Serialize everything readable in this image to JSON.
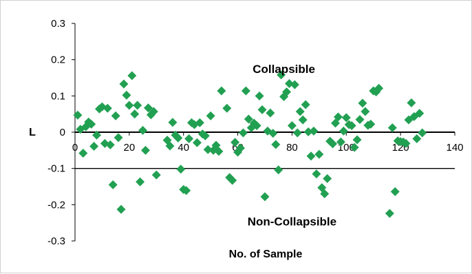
{
  "chart_data": {
    "type": "scatter",
    "xlabel": "No. of Sample",
    "ylabel": "L",
    "xlim": [
      0,
      140
    ],
    "ylim": [
      -0.3,
      0.3
    ],
    "x_ticks": [
      0,
      20,
      40,
      60,
      80,
      100,
      120,
      140
    ],
    "y_ticks": [
      -0.3,
      -0.2,
      -0.1,
      0,
      0.1,
      0.2,
      0.3
    ],
    "x_tick_labels": [
      "0",
      "20",
      "40",
      "60",
      "80",
      "100",
      "120",
      "140"
    ],
    "y_tick_labels": [
      "-0.3",
      "-0.2",
      "-0.1",
      "0",
      "0.1",
      "0.2",
      "0.3"
    ],
    "grid": false,
    "reference_lines": [
      {
        "axis": "y",
        "value": -0.1,
        "color": "#000000"
      }
    ],
    "annotations": [
      {
        "text": "Collapsible",
        "x": 77,
        "y": 0.163
      },
      {
        "text": "Non-Collapsible",
        "x": 80,
        "y": -0.257
      }
    ],
    "marker": {
      "shape": "diamond",
      "color": "#22a052"
    },
    "series": [
      {
        "points": [
          [
            1,
            0.047
          ],
          [
            2,
            0.008
          ],
          [
            3,
            -0.058
          ],
          [
            4,
            0.015
          ],
          [
            5,
            0.028
          ],
          [
            6,
            0.022
          ],
          [
            7,
            -0.039
          ],
          [
            8,
            -0.008
          ],
          [
            9,
            0.064
          ],
          [
            10,
            0.07
          ],
          [
            11,
            -0.031
          ],
          [
            12,
            0.066
          ],
          [
            13,
            -0.035
          ],
          [
            14,
            -0.145
          ],
          [
            15,
            0.045
          ],
          [
            16,
            -0.015
          ],
          [
            17,
            -0.213
          ],
          [
            18,
            0.133
          ],
          [
            19,
            0.102
          ],
          [
            20,
            0.074
          ],
          [
            21,
            0.156
          ],
          [
            22,
            0.05
          ],
          [
            23,
            0.074
          ],
          [
            24,
            -0.137
          ],
          [
            25,
            0.005
          ],
          [
            26,
            -0.05
          ],
          [
            27,
            0.067
          ],
          [
            28,
            0.048
          ],
          [
            29,
            0.057
          ],
          [
            30,
            -0.118
          ],
          [
            34,
            -0.022
          ],
          [
            35,
            -0.038
          ],
          [
            36,
            0.027
          ],
          [
            37,
            -0.008
          ],
          [
            38,
            -0.016
          ],
          [
            39,
            -0.102
          ],
          [
            40,
            -0.158
          ],
          [
            41,
            -0.161
          ],
          [
            42,
            -0.018
          ],
          [
            43,
            0.026
          ],
          [
            44,
            0.021
          ],
          [
            45,
            -0.029
          ],
          [
            46,
            0.026
          ],
          [
            47,
            -0.005
          ],
          [
            48,
            -0.01
          ],
          [
            49,
            -0.048
          ],
          [
            50,
            0.045
          ],
          [
            51,
            -0.05
          ],
          [
            52,
            -0.036
          ],
          [
            53,
            -0.053
          ],
          [
            54,
            0.114
          ],
          [
            56,
            0.066
          ],
          [
            57,
            -0.125
          ],
          [
            58,
            -0.133
          ],
          [
            59,
            -0.028
          ],
          [
            60,
            -0.055
          ],
          [
            61,
            -0.044
          ],
          [
            62,
            -0.002
          ],
          [
            63,
            0.114
          ],
          [
            64,
            0.036
          ],
          [
            65,
            0.012
          ],
          [
            66,
            0.025
          ],
          [
            67,
            0.018
          ],
          [
            68,
            0.1
          ],
          [
            69,
            0.062
          ],
          [
            70,
            -0.178
          ],
          [
            71,
            0.003
          ],
          [
            72,
            0.053
          ],
          [
            73,
            -0.003
          ],
          [
            74,
            -0.034
          ],
          [
            75,
            -0.104
          ],
          [
            76,
            0.158
          ],
          [
            77,
            0.098
          ],
          [
            78,
            0.111
          ],
          [
            79,
            0.134
          ],
          [
            80,
            0.018
          ],
          [
            81,
            0.131
          ],
          [
            82,
            -0.002
          ],
          [
            83,
            0.057
          ],
          [
            84,
            0.034
          ],
          [
            85,
            0.076
          ],
          [
            86,
            0.001
          ],
          [
            87,
            -0.066
          ],
          [
            88,
            0.003
          ],
          [
            89,
            -0.115
          ],
          [
            90,
            -0.061
          ],
          [
            91,
            -0.153
          ],
          [
            92,
            -0.17
          ],
          [
            93,
            -0.128
          ],
          [
            94,
            -0.025
          ],
          [
            95,
            -0.032
          ],
          [
            96,
            0.025
          ],
          [
            97,
            0.042
          ],
          [
            98,
            -0.027
          ],
          [
            99,
            0.003
          ],
          [
            100,
            0.04
          ],
          [
            101,
            0.021
          ],
          [
            102,
            0.018
          ],
          [
            103,
            -0.042
          ],
          [
            104,
            -0.021
          ],
          [
            105,
            0.035
          ],
          [
            106,
            0.08
          ],
          [
            107,
            0.057
          ],
          [
            108,
            0.019
          ],
          [
            109,
            0.022
          ],
          [
            110,
            0.114
          ],
          [
            111,
            0.111
          ],
          [
            112,
            0.121
          ],
          [
            116,
            -0.224
          ],
          [
            117,
            0.012
          ],
          [
            118,
            -0.164
          ],
          [
            119,
            -0.024
          ],
          [
            120,
            -0.026
          ],
          [
            121,
            -0.027
          ],
          [
            122,
            -0.031
          ],
          [
            123,
            0.034
          ],
          [
            124,
            0.081
          ],
          [
            125,
            0.043
          ],
          [
            126,
            -0.018
          ],
          [
            127,
            0.052
          ],
          [
            128,
            -0.002
          ]
        ]
      }
    ]
  }
}
